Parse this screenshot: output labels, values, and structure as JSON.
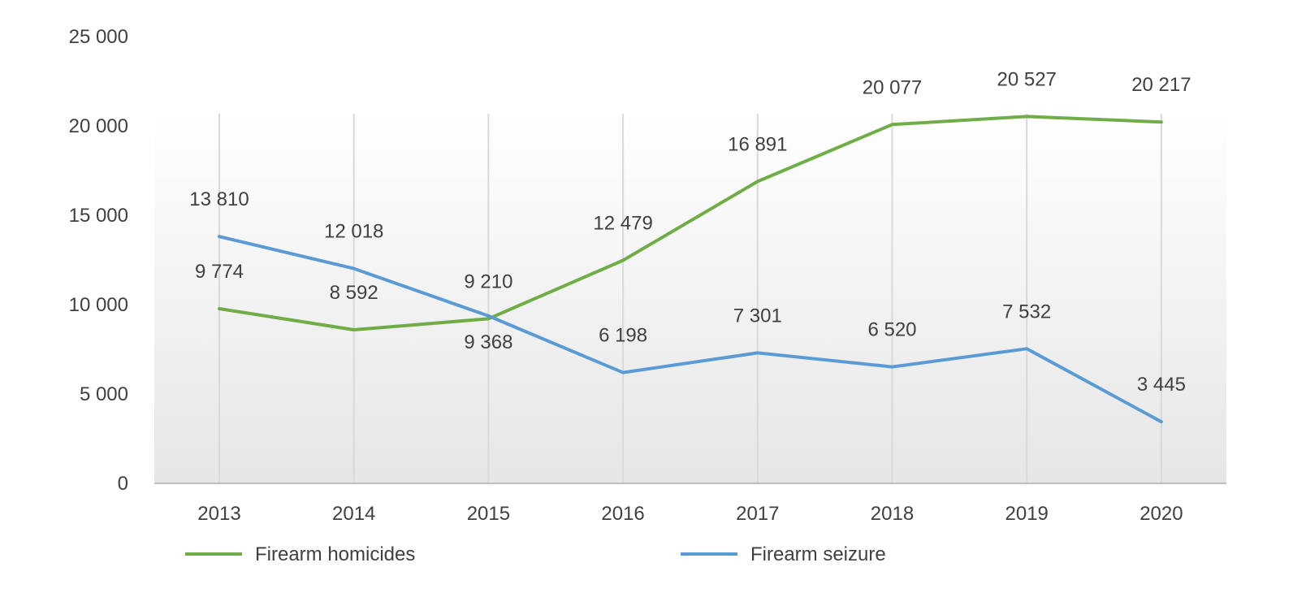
{
  "chart_data": {
    "type": "line",
    "categories": [
      "2013",
      "2014",
      "2015",
      "2016",
      "2017",
      "2018",
      "2019",
      "2020"
    ],
    "series": [
      {
        "name": "Firearm homicides",
        "color": "#70AD47",
        "values": [
          9774,
          8592,
          9210,
          12479,
          16891,
          20077,
          20527,
          20217
        ],
        "labels": [
          "9 774",
          "8 592",
          "9 210",
          "12 479",
          "16 891",
          "20 077",
          "20 527",
          "20 217"
        ]
      },
      {
        "name": "Firearm seizure",
        "color": "#5B9BD5",
        "values": [
          13810,
          12018,
          9368,
          6198,
          7301,
          6520,
          7532,
          3445
        ],
        "labels": [
          "13 810",
          "12 018",
          "9 368",
          "6 198",
          "7 301",
          "6 520",
          "7 532",
          "3 445"
        ]
      }
    ],
    "ylim": [
      0,
      25000
    ],
    "yticks": [
      0,
      5000,
      10000,
      15000,
      20000,
      25000
    ],
    "ytick_labels": [
      "0",
      "5 000",
      "10 000",
      "15 000",
      "20 000",
      "25 000"
    ],
    "grid": "vertical",
    "legend_position": "bottom",
    "plot_background": "gradient"
  }
}
